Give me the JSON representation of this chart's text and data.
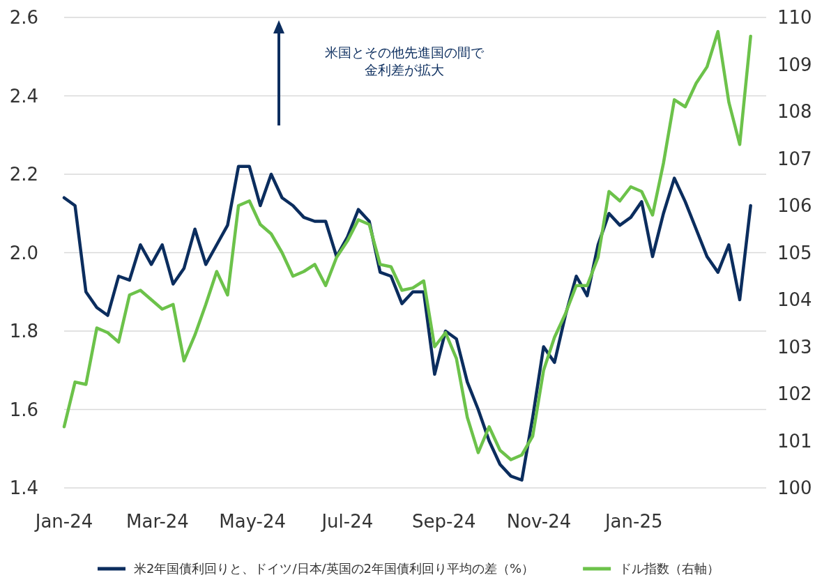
{
  "chart_data": {
    "type": "line",
    "x": [
      "2024-01-01",
      "2024-01-08",
      "2024-01-15",
      "2024-01-22",
      "2024-01-29",
      "2024-02-05",
      "2024-02-12",
      "2024-02-19",
      "2024-02-26",
      "2024-03-04",
      "2024-03-11",
      "2024-03-18",
      "2024-03-25",
      "2024-04-01",
      "2024-04-08",
      "2024-04-15",
      "2024-04-22",
      "2024-04-29",
      "2024-05-06",
      "2024-05-13",
      "2024-05-20",
      "2024-05-27",
      "2024-06-03",
      "2024-06-10",
      "2024-06-17",
      "2024-06-24",
      "2024-07-01",
      "2024-07-08",
      "2024-07-15",
      "2024-07-22",
      "2024-07-29",
      "2024-08-05",
      "2024-08-12",
      "2024-08-19",
      "2024-08-26",
      "2024-09-02",
      "2024-09-09",
      "2024-09-16",
      "2024-09-23",
      "2024-09-30",
      "2024-10-07",
      "2024-10-14",
      "2024-10-21",
      "2024-10-28",
      "2024-11-04",
      "2024-11-11",
      "2024-11-18",
      "2024-11-25",
      "2024-12-02",
      "2024-12-09",
      "2024-12-16",
      "2024-12-23",
      "2024-12-30",
      "2025-01-06",
      "2025-01-13",
      "2025-01-20",
      "2025-01-27",
      "2025-02-03",
      "2025-02-10",
      "2025-02-17",
      "2025-02-24",
      "2025-03-03",
      "2025-03-10",
      "2025-03-17"
    ],
    "xlim": [
      "2024-01-01",
      "2025-03-27"
    ],
    "xticks": [
      {
        "value": "2024-01-01",
        "label": "Jan-24"
      },
      {
        "value": "2024-03-01",
        "label": "Mar-24"
      },
      {
        "value": "2024-05-01",
        "label": "May-24"
      },
      {
        "value": "2024-07-01",
        "label": "Jul-24"
      },
      {
        "value": "2024-09-01",
        "label": "Sep-24"
      },
      {
        "value": "2024-11-01",
        "label": "Nov-24"
      },
      {
        "value": "2025-01-01",
        "label": "Jan-25"
      }
    ],
    "ylim": [
      1.4,
      2.6
    ],
    "yticks": [
      {
        "value": 1.4,
        "label": "1.4"
      },
      {
        "value": 1.6,
        "label": "1.6"
      },
      {
        "value": 1.8,
        "label": "1.8"
      },
      {
        "value": 2.0,
        "label": "2.0"
      },
      {
        "value": 2.2,
        "label": "2.2"
      },
      {
        "value": 2.4,
        "label": "2.4"
      },
      {
        "value": 2.6,
        "label": "2.6"
      }
    ],
    "y2lim": [
      100,
      110
    ],
    "y2ticks": [
      100,
      101,
      102,
      103,
      104,
      105,
      106,
      107,
      108,
      109,
      110
    ],
    "grid": "y",
    "legend": "bottom",
    "series": [
      {
        "name": "米2年国債利回りと、ドイツ/日本/英国の2年国債利回り平均の差（%）",
        "color": "#0b2d5e",
        "values": [
          2.14,
          2.12,
          1.9,
          1.86,
          1.84,
          1.94,
          1.93,
          2.02,
          1.97,
          2.02,
          1.92,
          1.96,
          2.06,
          1.97,
          2.02,
          2.07,
          2.22,
          2.22,
          2.12,
          2.2,
          2.14,
          2.12,
          2.09,
          2.08,
          2.08,
          1.99,
          2.04,
          2.11,
          2.08,
          1.95,
          1.94,
          1.87,
          1.9,
          1.9,
          1.69,
          1.8,
          1.78,
          1.67,
          1.6,
          1.52,
          1.46,
          1.43,
          1.42,
          1.58,
          1.76,
          1.72,
          1.84,
          1.94,
          1.89,
          2.02,
          2.1,
          2.07,
          2.09,
          2.13,
          1.99,
          2.1,
          2.19,
          2.13,
          2.06,
          1.99,
          1.95,
          2.02,
          1.88,
          2.12
        ]
      },
      {
        "name": "ドル指数（右軸）",
        "color": "#6cc24a",
        "axis": "y2",
        "values": [
          101.3,
          102.25,
          102.2,
          103.4,
          103.3,
          103.1,
          104.1,
          104.2,
          104.0,
          103.8,
          103.9,
          102.7,
          103.25,
          103.9,
          104.6,
          104.1,
          106.0,
          106.1,
          105.6,
          105.4,
          105.0,
          104.5,
          104.6,
          104.75,
          104.3,
          104.9,
          105.25,
          105.7,
          105.6,
          104.75,
          104.7,
          104.2,
          104.25,
          104.4,
          103.0,
          103.3,
          102.75,
          101.5,
          100.75,
          101.3,
          100.8,
          100.6,
          100.7,
          101.1,
          102.5,
          103.2,
          103.7,
          104.3,
          104.3,
          104.9,
          106.3,
          106.1,
          106.4,
          106.3,
          105.8,
          106.9,
          108.25,
          108.1,
          108.6,
          108.95,
          109.7,
          108.2,
          107.3,
          109.6
        ]
      }
    ],
    "annotations": [
      "米国とその他先進国の間で金利差が拡大"
    ]
  }
}
